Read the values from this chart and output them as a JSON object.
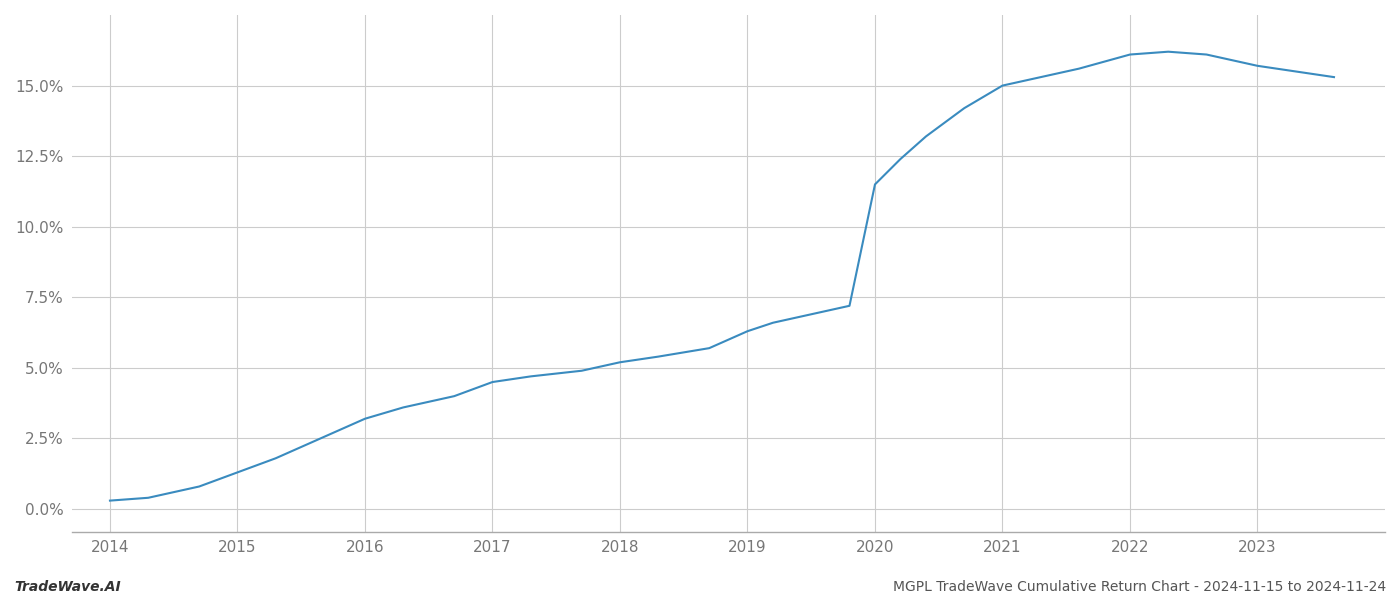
{
  "x_values": [
    2014.0,
    2014.3,
    2014.7,
    2015.0,
    2015.3,
    2015.7,
    2016.0,
    2016.3,
    2016.7,
    2017.0,
    2017.3,
    2017.7,
    2018.0,
    2018.3,
    2018.7,
    2019.0,
    2019.2,
    2019.4,
    2019.6,
    2019.8,
    2020.0,
    2020.2,
    2020.4,
    2020.7,
    2021.0,
    2021.3,
    2021.6,
    2022.0,
    2022.3,
    2022.6,
    2022.9,
    2023.0,
    2023.3,
    2023.6
  ],
  "y_values": [
    0.003,
    0.004,
    0.008,
    0.013,
    0.018,
    0.026,
    0.032,
    0.036,
    0.04,
    0.045,
    0.047,
    0.049,
    0.052,
    0.054,
    0.057,
    0.063,
    0.066,
    0.068,
    0.07,
    0.072,
    0.115,
    0.124,
    0.132,
    0.142,
    0.15,
    0.153,
    0.156,
    0.161,
    0.162,
    0.161,
    0.158,
    0.157,
    0.155,
    0.153
  ],
  "line_color": "#3a8bbf",
  "line_width": 1.5,
  "yticks": [
    0.0,
    0.025,
    0.05,
    0.075,
    0.1,
    0.125,
    0.15
  ],
  "ytick_labels": [
    "0.0%",
    "2.5%",
    "5.0%",
    "7.5%",
    "10.0%",
    "12.5%",
    "15.0%"
  ],
  "xticks": [
    2014,
    2015,
    2016,
    2017,
    2018,
    2019,
    2020,
    2021,
    2022,
    2023
  ],
  "xtick_labels": [
    "2014",
    "2015",
    "2016",
    "2017",
    "2018",
    "2019",
    "2020",
    "2021",
    "2022",
    "2023"
  ],
  "grid_color": "#cccccc",
  "background_color": "#ffffff",
  "bottom_left_text": "TradeWave.AI",
  "bottom_right_text": "MGPL TradeWave Cumulative Return Chart - 2024-11-15 to 2024-11-24",
  "xlim": [
    2013.7,
    2024.0
  ],
  "ylim": [
    -0.008,
    0.175
  ]
}
